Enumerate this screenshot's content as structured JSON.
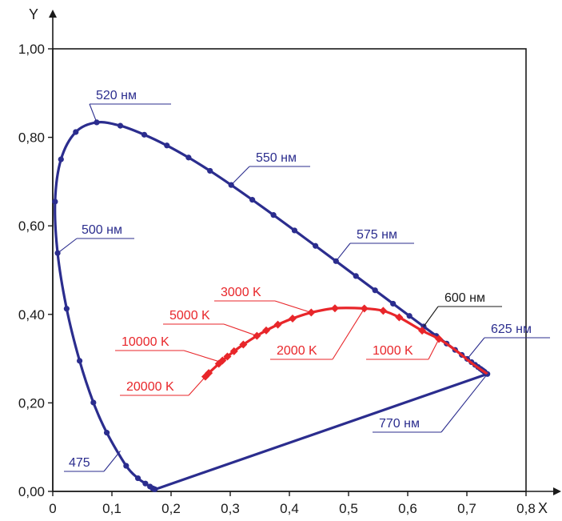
{
  "chart_data": {
    "type": "scatter",
    "title": "",
    "xlabel": "X",
    "ylabel": "Y",
    "xlim": [
      0,
      0.8
    ],
    "ylim": [
      0,
      1.0
    ],
    "xticks": [
      "0",
      "0,1",
      "0,2",
      "0,3",
      "0,4",
      "0,5",
      "0,6",
      "0,7",
      "0,8"
    ],
    "yticks": [
      "0,00",
      "0,20",
      "0,40",
      "0,60",
      "0,80",
      "1,00"
    ],
    "grid": false,
    "colors": {
      "locus": "#2b2d8e",
      "planckian": "#e8262a",
      "axis": "#1a1a1a"
    },
    "series": [
      {
        "key": "spectral_locus",
        "marker": "circle",
        "x": [
          0.1741,
          0.1738,
          0.1736,
          0.1733,
          0.1726,
          0.1714,
          0.1689,
          0.1644,
          0.1566,
          0.144,
          0.1241,
          0.0913,
          0.0687,
          0.0454,
          0.0235,
          0.0082,
          0.0039,
          0.0139,
          0.0389,
          0.0743,
          0.1142,
          0.1547,
          0.1929,
          0.2296,
          0.2658,
          0.3016,
          0.3373,
          0.3731,
          0.4087,
          0.4441,
          0.4788,
          0.5125,
          0.5448,
          0.5752,
          0.6029,
          0.627,
          0.6482,
          0.6658,
          0.6801,
          0.6915,
          0.7006,
          0.7079,
          0.714,
          0.719,
          0.723,
          0.726,
          0.7283,
          0.73,
          0.7347,
          0.7347
        ],
        "y": [
          0.005,
          0.0049,
          0.0049,
          0.0048,
          0.0048,
          0.0051,
          0.0069,
          0.0109,
          0.0177,
          0.0297,
          0.0578,
          0.1327,
          0.2007,
          0.295,
          0.4127,
          0.5384,
          0.6548,
          0.7502,
          0.812,
          0.8338,
          0.8262,
          0.8059,
          0.7816,
          0.7543,
          0.7243,
          0.6923,
          0.6589,
          0.6245,
          0.5896,
          0.5547,
          0.5202,
          0.4866,
          0.4544,
          0.4242,
          0.3965,
          0.3725,
          0.3514,
          0.334,
          0.3197,
          0.3083,
          0.2993,
          0.292,
          0.2859,
          0.2809,
          0.277,
          0.274,
          0.2717,
          0.27,
          0.2653,
          0.2653
        ]
      },
      {
        "key": "planckian_locus",
        "marker": "diamond",
        "x": [
          0.6528,
          0.6244,
          0.5856,
          0.5586,
          0.5267,
          0.477,
          0.4369,
          0.4054,
          0.3805,
          0.3608,
          0.3451,
          0.3221,
          0.3064,
          0.2952,
          0.2869,
          0.2807,
          0.2637,
          0.258
        ],
        "y": [
          0.3444,
          0.3632,
          0.3932,
          0.408,
          0.4133,
          0.4137,
          0.4041,
          0.3907,
          0.3768,
          0.3636,
          0.3516,
          0.3318,
          0.3166,
          0.3048,
          0.2956,
          0.2884,
          0.2674,
          0.2592
        ],
        "diamond_indices": [
          0,
          1,
          2,
          3,
          4,
          5,
          6,
          7,
          8,
          9,
          10,
          11,
          12,
          13,
          14,
          15,
          16,
          17
        ]
      }
    ],
    "annotations": [
      {
        "text": "520 нм",
        "color": "locus",
        "anchor": [
          0.0743,
          0.8338
        ]
      },
      {
        "text": "550 нм",
        "color": "locus",
        "anchor": [
          0.3016,
          0.6923
        ]
      },
      {
        "text": "500 нм",
        "color": "locus",
        "anchor": [
          0.0082,
          0.5384
        ]
      },
      {
        "text": "575 нм",
        "color": "locus",
        "anchor": [
          0.4788,
          0.5202
        ]
      },
      {
        "text": "600 нм",
        "color": "axis",
        "anchor": [
          0.627,
          0.3725
        ]
      },
      {
        "text": "625 нм",
        "color": "locus",
        "anchor": [
          0.7006,
          0.2993
        ]
      },
      {
        "text": "770 нм",
        "color": "locus",
        "anchor": [
          0.7347,
          0.2653
        ]
      },
      {
        "text": "475",
        "color": "locus",
        "anchor": [
          0.1142,
          0.0913
        ]
      },
      {
        "text": "3000 K",
        "color": "planckian",
        "anchor": [
          0.4369,
          0.4041
        ]
      },
      {
        "text": "5000 K",
        "color": "planckian",
        "anchor": [
          0.3451,
          0.3516
        ]
      },
      {
        "text": "10000 K",
        "color": "planckian",
        "anchor": [
          0.2807,
          0.2935
        ]
      },
      {
        "text": "20000 K",
        "color": "planckian",
        "anchor": [
          0.258,
          0.2592
        ]
      },
      {
        "text": "2000 K",
        "color": "planckian",
        "anchor": [
          0.5267,
          0.4133
        ]
      },
      {
        "text": "1000 K",
        "color": "planckian",
        "anchor": [
          0.6528,
          0.3444
        ]
      }
    ]
  }
}
